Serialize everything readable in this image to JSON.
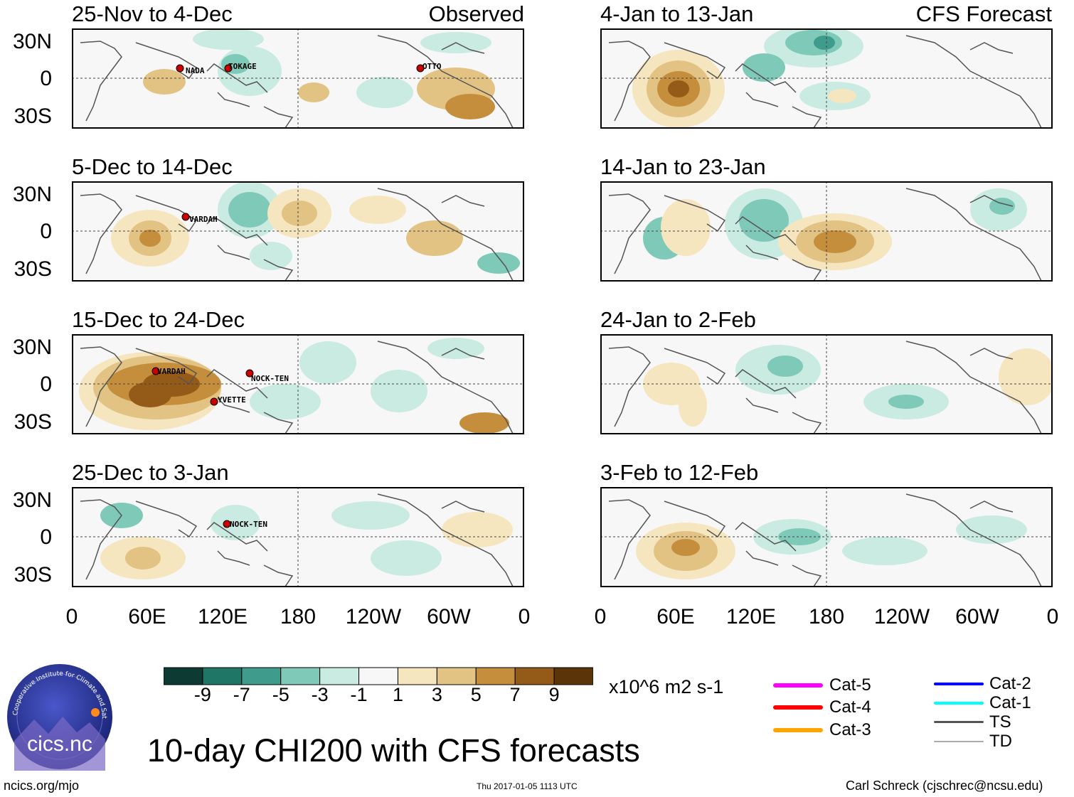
{
  "header": {
    "left_column_label": "Observed",
    "right_column_label": "CFS Forecast"
  },
  "panels": [
    {
      "title": "25-Nov to 4-Dec",
      "storms": [
        "NADA",
        "TOKAGE",
        "OTTO"
      ]
    },
    {
      "title": "5-Dec to 14-Dec",
      "storms": [
        "VARDAH"
      ]
    },
    {
      "title": "15-Dec to 24-Dec",
      "storms": [
        "VARDAH",
        "NOCK-TEN",
        "YVETTE"
      ]
    },
    {
      "title": "25-Dec to 3-Jan",
      "storms": [
        "NOCK-TEN"
      ]
    },
    {
      "title": "4-Jan to 13-Jan",
      "storms": []
    },
    {
      "title": "14-Jan to 23-Jan",
      "storms": []
    },
    {
      "title": "24-Jan to 2-Feb",
      "storms": []
    },
    {
      "title": "3-Feb to 12-Feb",
      "storms": []
    }
  ],
  "axes": {
    "lat_labels": [
      "30N",
      "0",
      "30S"
    ],
    "lon_labels": [
      "0",
      "60E",
      "120E",
      "180",
      "120W",
      "60W",
      "0"
    ]
  },
  "colorbar": {
    "labels": [
      "-9",
      "-7",
      "-5",
      "-3",
      "-1",
      "1",
      "3",
      "5",
      "7",
      "9"
    ],
    "colors": [
      "#0d3b33",
      "#1f7566",
      "#3f9c8c",
      "#7fc9b9",
      "#c9ebe1",
      "#f7f7f7",
      "#f5e6bf",
      "#e3c383",
      "#c58e3c",
      "#945a17",
      "#5c3409"
    ],
    "units": "x10^6 m2 s-1"
  },
  "legend": {
    "left": [
      {
        "label": "Cat-5",
        "color": "#ff00ff"
      },
      {
        "label": "Cat-4",
        "color": "#ff0000"
      },
      {
        "label": "Cat-3",
        "color": "#ffa500"
      }
    ],
    "right": [
      {
        "label": "Cat-2",
        "color": "#0000ff"
      },
      {
        "label": "Cat-1",
        "color": "#00ffff"
      },
      {
        "label": "TS",
        "color": "#555555"
      },
      {
        "label": "TD",
        "color": "#aaaaaa"
      }
    ]
  },
  "title": "10-day CHI200 with CFS forecasts",
  "footer": {
    "left": "ncics.org/mjo",
    "center": "Thu 2017-01-05 1113 UTC",
    "right": "Carl Schreck (cjschrec@ncsu.edu)"
  },
  "logo": {
    "text": "cics.nc",
    "ring_text": "Cooperative Institute for Climate and Satellites"
  }
}
